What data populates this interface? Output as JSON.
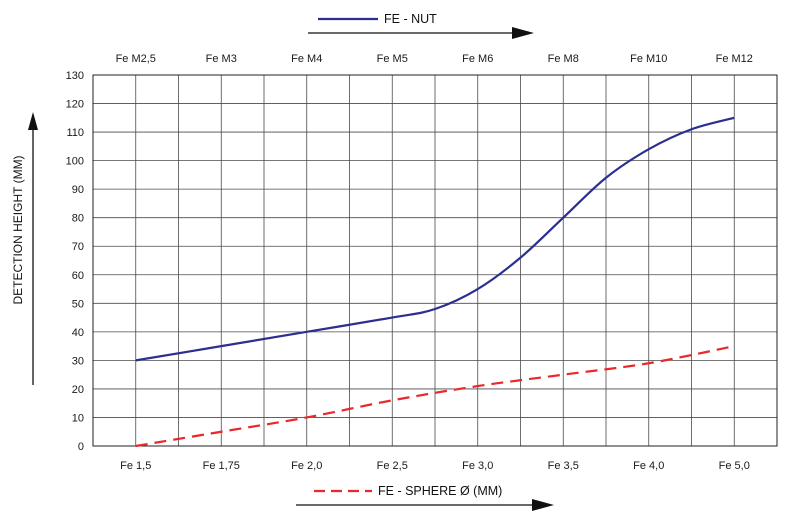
{
  "chart_data": {
    "type": "line",
    "title": "",
    "ylabel": "DETECTION HEIGHT (MM)",
    "ylim": [
      0,
      130
    ],
    "yticks": [
      0,
      10,
      20,
      30,
      40,
      50,
      60,
      70,
      80,
      90,
      100,
      110,
      120,
      130
    ],
    "grid": true,
    "x_bottom": {
      "label": "FE - SPHERE Ø (MM)",
      "ticks": [
        "Fe 1,5",
        "Fe 1,75",
        "Fe 2,0",
        "Fe 2,5",
        "Fe 3,0",
        "Fe 3,5",
        "Fe 4,0",
        "Fe 5,0"
      ],
      "tick_positions": [
        0.5,
        1.5,
        2.5,
        3.5,
        4.5,
        5.5,
        6.5,
        7.5
      ]
    },
    "x_top": {
      "label": "FE - NUT",
      "ticks": [
        "Fe M2,5",
        "Fe M3",
        "Fe M4",
        "Fe M5",
        "Fe M6",
        "Fe M8",
        "Fe M10",
        "Fe M12"
      ],
      "tick_positions": [
        0.5,
        1.5,
        2.5,
        3.5,
        4.5,
        5.5,
        6.5,
        7.5
      ]
    },
    "xlim": [
      0,
      8
    ],
    "series": [
      {
        "name": "FE - NUT",
        "color": "#2b2f8f",
        "style": "solid",
        "x": [
          0.5,
          1.5,
          2.5,
          3.5,
          4.0,
          4.5,
          5.0,
          5.5,
          6.0,
          6.5,
          7.0,
          7.5
        ],
        "y": [
          30,
          35,
          40,
          45,
          48,
          55,
          66,
          80,
          94,
          104,
          111,
          115
        ]
      },
      {
        "name": "FE - SPHERE Ø (MM)",
        "color": "#e8282b",
        "style": "dashed",
        "x": [
          0.5,
          1.5,
          2.5,
          3.5,
          4.5,
          5.5,
          6.5,
          7.5
        ],
        "y": [
          0,
          5,
          10,
          16,
          21,
          25,
          29,
          35
        ]
      }
    ]
  }
}
